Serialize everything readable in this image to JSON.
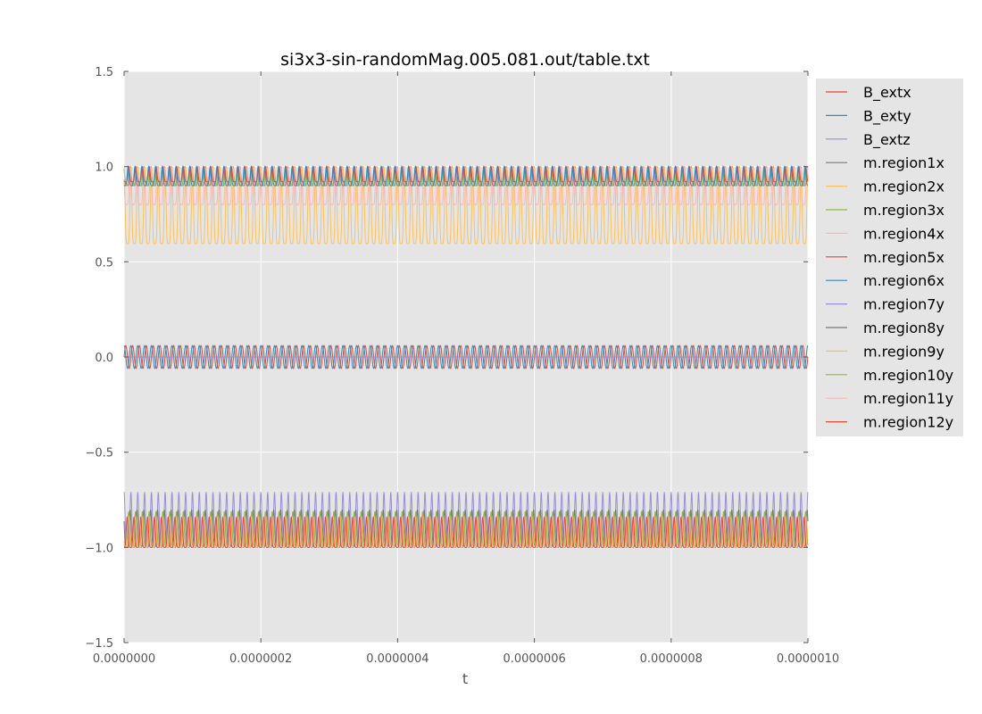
{
  "chart_data": {
    "type": "line",
    "title": "si3x3-sin-randomMag.005.081.out/table.txt",
    "xlabel": "t",
    "ylabel": "",
    "xlim": [
      0,
      1e-06
    ],
    "ylim": [
      -1.5,
      1.5
    ],
    "x_ticks": [
      "0.0000000",
      "0.0000002",
      "0.0000004",
      "0.0000006",
      "0.0000008",
      "0.0000010"
    ],
    "y_ticks": [
      "−1.5",
      "−1.0",
      "−0.5",
      "0.0",
      "0.5",
      "1.0",
      "1.5"
    ],
    "grid": true,
    "legend_position": "outside-right",
    "cycles": 100,
    "series": [
      {
        "name": "B_extx",
        "color": "#E24A33",
        "shape": "sine",
        "center": 0.0,
        "amplitude": 0.06,
        "phase": 0.0
      },
      {
        "name": "B_exty",
        "color": "#348ABD",
        "shape": "sine",
        "center": 0.0,
        "amplitude": 0.06,
        "phase": 1.5708
      },
      {
        "name": "B_extz",
        "color": "#988ED5",
        "shape": "sine",
        "center": 0.0,
        "amplitude": 0.0,
        "phase": 0.0
      },
      {
        "name": "m.region1x",
        "color": "#777777",
        "shape": "osc",
        "center": 0.95,
        "amplitude": 0.05,
        "phase": 0.4
      },
      {
        "name": "m.region2x",
        "color": "#FBC15E",
        "shape": "osc",
        "center": 0.795,
        "amplitude": 0.2,
        "phase": 0.0
      },
      {
        "name": "m.region3x",
        "color": "#8EBA42",
        "shape": "osc",
        "center": 0.95,
        "amplitude": 0.05,
        "phase": 1.2
      },
      {
        "name": "m.region4x",
        "color": "#FFB5B8",
        "shape": "osc",
        "center": 0.9,
        "amplitude": 0.1,
        "phase": 0.8
      },
      {
        "name": "m.region5x",
        "color": "#E24A33",
        "shape": "osc",
        "center": 0.96,
        "amplitude": 0.04,
        "phase": 2.0
      },
      {
        "name": "m.region6x",
        "color": "#348ABD",
        "shape": "osc",
        "center": 0.95,
        "amplitude": 0.05,
        "phase": 2.6
      },
      {
        "name": "m.region7y",
        "color": "#988ED5",
        "shape": "osc",
        "center": -0.85,
        "amplitude": 0.14,
        "phase": 0.0
      },
      {
        "name": "m.region8y",
        "color": "#777777",
        "shape": "osc",
        "center": -0.9,
        "amplitude": 0.1,
        "phase": 0.7
      },
      {
        "name": "m.region9y",
        "color": "#FBC15E",
        "shape": "osc",
        "center": -0.92,
        "amplitude": 0.08,
        "phase": 1.4
      },
      {
        "name": "m.region10y",
        "color": "#8EBA42",
        "shape": "osc",
        "center": -0.9,
        "amplitude": 0.09,
        "phase": 2.1
      },
      {
        "name": "m.region11y",
        "color": "#FFB5B8",
        "shape": "osc",
        "center": -0.92,
        "amplitude": 0.08,
        "phase": 2.8
      },
      {
        "name": "m.region12y",
        "color": "#E24A33",
        "shape": "osc",
        "center": -0.92,
        "amplitude": 0.08,
        "phase": 3.5
      }
    ]
  },
  "colors": {
    "plot_background": "#E5E5E5",
    "grid": "#FFFFFF",
    "legend_background": "#E5E5E5"
  }
}
